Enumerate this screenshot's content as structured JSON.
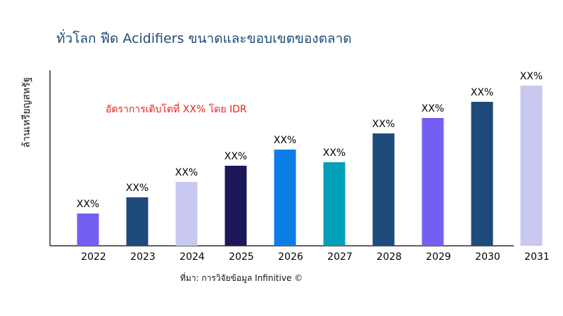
{
  "chart_data": {
    "type": "bar",
    "title": "ทั่วโลก ฟีด Acidifiers ขนาดและขอบเขตของตลาด",
    "ylabel": "ล้านเหรียญสหรัฐ",
    "xlabel": "",
    "annotation": "อัตราการเติบโตที่ XX% โดย IDR",
    "source": "ที่มา: การวิจัยข้อมูล Infinitive ©",
    "categories": [
      "2022",
      "2023",
      "2024",
      "2025",
      "2026",
      "2027",
      "2028",
      "2029",
      "2030",
      "2031"
    ],
    "values": [
      46,
      69,
      91,
      114,
      137,
      119,
      160,
      182,
      205,
      228
    ],
    "data_labels": [
      "XX%",
      "XX%",
      "XX%",
      "XX%",
      "XX%",
      "XX%",
      "XX%",
      "XX%",
      "XX%",
      "XX%"
    ],
    "colors": [
      "#7360f2",
      "#1e4b7a",
      "#c8c8f0",
      "#1c1858",
      "#0d7de6",
      "#00a0b8",
      "#1e4b7a",
      "#7360f2",
      "#1e4b7a",
      "#c8c8f0"
    ],
    "ylim": [
      0,
      250
    ],
    "grid": false,
    "y_ticks_shown": false
  }
}
